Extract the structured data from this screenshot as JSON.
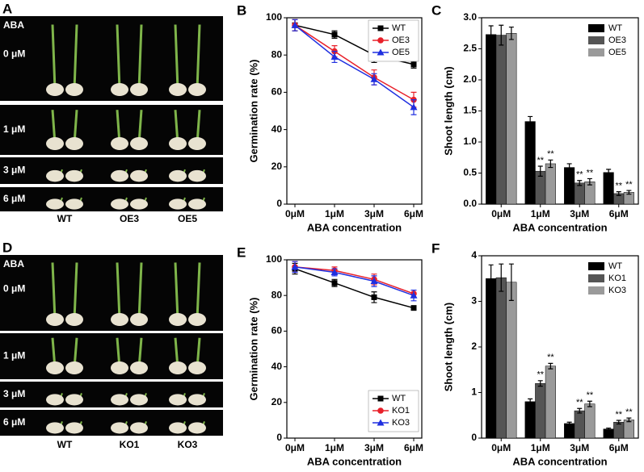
{
  "chart_data": [
    {
      "type": "line",
      "panel": "B",
      "categories": [
        "0μM",
        "1μM",
        "3μM",
        "6μM"
      ],
      "ylabel": "Germination rate (%)",
      "xlabel": "ABA concentration",
      "ylim": [
        0,
        100
      ],
      "yticks": [
        0,
        20,
        40,
        60,
        80,
        100
      ],
      "legend": "upper right",
      "series": [
        {
          "name": "WT",
          "color": "#000000",
          "marker": "square",
          "values": [
            96,
            91,
            80,
            75
          ],
          "errors": [
            3,
            2,
            4,
            2
          ]
        },
        {
          "name": "OE3",
          "color": "#e8202a",
          "marker": "circle",
          "values": [
            96,
            82,
            68,
            56
          ],
          "errors": [
            3,
            3,
            4,
            4
          ]
        },
        {
          "name": "OE5",
          "color": "#1f2fe0",
          "marker": "triangle",
          "values": [
            96,
            79,
            67,
            52
          ],
          "errors": [
            3,
            3,
            3,
            4
          ]
        }
      ]
    },
    {
      "type": "bar",
      "panel": "C",
      "categories": [
        "0μM",
        "1μM",
        "3μM",
        "6μM"
      ],
      "ylabel": "Shoot length (cm)",
      "xlabel": "ABA concentration",
      "ylim": [
        0,
        3
      ],
      "yticks": [
        {
          "value": 0,
          "label": "0.0"
        },
        0.5,
        {
          "value": 1,
          "label": "1.0"
        },
        1.5,
        {
          "value": 2,
          "label": "2.0"
        },
        2.5,
        {
          "value": 3,
          "label": "3.0"
        }
      ],
      "legend": "upper right",
      "series": [
        {
          "name": "WT",
          "color": "#000000",
          "values": [
            2.73,
            1.33,
            0.59,
            0.51
          ],
          "errors": [
            0.14,
            0.08,
            0.06,
            0.05
          ],
          "markers": [
            null,
            null,
            null,
            null
          ]
        },
        {
          "name": "OE3",
          "color": "#555555",
          "values": [
            2.72,
            0.53,
            0.34,
            0.17
          ],
          "errors": [
            0.16,
            0.08,
            0.04,
            0.03
          ],
          "markers": [
            null,
            "**",
            "**",
            "**"
          ]
        },
        {
          "name": "OE5",
          "color": "#9a9a9a",
          "values": [
            2.75,
            0.65,
            0.36,
            0.19
          ],
          "errors": [
            0.1,
            0.06,
            0.05,
            0.03
          ],
          "markers": [
            null,
            "**",
            "**",
            "**"
          ]
        }
      ]
    },
    {
      "type": "line",
      "panel": "E",
      "categories": [
        "0μM",
        "1μM",
        "3μM",
        "6μM"
      ],
      "ylabel": "Germination rate (%)",
      "xlabel": "ABA concentration",
      "ylim": [
        0,
        100
      ],
      "yticks": [
        0,
        20,
        40,
        60,
        80,
        100
      ],
      "legend": "lower right",
      "series": [
        {
          "name": "WT",
          "color": "#000000",
          "marker": "square",
          "values": [
            95,
            87,
            79,
            73
          ],
          "errors": [
            3,
            2,
            3,
            1
          ]
        },
        {
          "name": "KO1",
          "color": "#e8202a",
          "marker": "circle",
          "values": [
            96,
            94,
            89,
            81
          ],
          "errors": [
            3,
            2,
            3,
            2
          ]
        },
        {
          "name": "KO3",
          "color": "#1f2fe0",
          "marker": "triangle",
          "values": [
            96,
            93,
            88,
            80
          ],
          "errors": [
            3,
            2,
            3,
            3
          ]
        }
      ]
    },
    {
      "type": "bar",
      "panel": "F",
      "categories": [
        "0μM",
        "1μM",
        "3μM",
        "6μM"
      ],
      "ylabel": "Shoot length (cm)",
      "xlabel": "ABA concentration",
      "ylim": [
        0,
        4
      ],
      "yticks": [
        0,
        1,
        2,
        3,
        4
      ],
      "legend": "upper right",
      "series": [
        {
          "name": "WT",
          "color": "#000000",
          "values": [
            3.5,
            0.8,
            0.32,
            0.2
          ],
          "errors": [
            0.3,
            0.06,
            0.03,
            0.02
          ],
          "markers": [
            null,
            null,
            null,
            null
          ]
        },
        {
          "name": "KO1",
          "color": "#555555",
          "values": [
            3.52,
            1.2,
            0.6,
            0.35
          ],
          "errors": [
            0.3,
            0.06,
            0.05,
            0.04
          ],
          "markers": [
            null,
            "**",
            "**",
            "**"
          ]
        },
        {
          "name": "KO3",
          "color": "#9a9a9a",
          "values": [
            3.42,
            1.58,
            0.75,
            0.4
          ],
          "errors": [
            0.4,
            0.06,
            0.06,
            0.04
          ],
          "markers": [
            null,
            "**",
            "**",
            "**"
          ]
        }
      ]
    }
  ],
  "photos": [
    {
      "panel": "A",
      "header": "ABA",
      "rows": [
        "0 μM",
        "1 μM",
        "3 μM",
        "6 μM"
      ],
      "columns": [
        "WT",
        "OE3",
        "OE5"
      ]
    },
    {
      "panel": "D",
      "header": "ABA",
      "rows": [
        "0 μM",
        "1 μM",
        "3 μM",
        "6 μM"
      ],
      "columns": [
        "WT",
        "KO1",
        "KO3"
      ]
    }
  ]
}
